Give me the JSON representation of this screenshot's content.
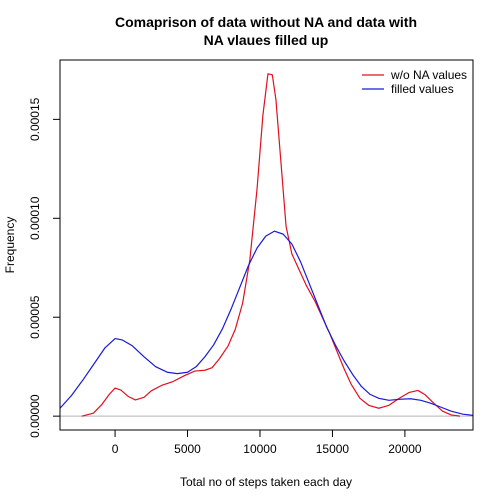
{
  "chart_data": {
    "type": "line",
    "title_lines": [
      "Comaprison of data without NA and data with",
      "NA vlaues filled up"
    ],
    "xlabel": "Total no of steps taken each day",
    "ylabel": "Frequency",
    "xlim": [
      -3800,
      24700
    ],
    "ylim": [
      -7e-06,
      0.00018
    ],
    "xticks": [
      0,
      5000,
      10000,
      15000,
      20000
    ],
    "xtick_labels": [
      "0",
      "5000",
      "10000",
      "15000",
      "20000"
    ],
    "yticks": [
      0,
      5e-05,
      0.0001,
      0.00015
    ],
    "ytick_labels": [
      "0.00000",
      "0.00005",
      "0.00010",
      "0.00015"
    ],
    "legend_position": "top-right",
    "baseline": 0,
    "series": [
      {
        "name": "w/o NA values",
        "color": "#e0101e",
        "points": [
          [
            -2300,
            0.0
          ],
          [
            -1500,
            1.5e-06
          ],
          [
            -900,
            6e-06
          ],
          [
            -400,
            1.1e-05
          ],
          [
            0,
            1.42e-05
          ],
          [
            400,
            1.32e-05
          ],
          [
            900,
            1e-05
          ],
          [
            1400,
            8.2e-06
          ],
          [
            2000,
            9.5e-06
          ],
          [
            2500,
            1.28e-05
          ],
          [
            3200,
            1.55e-05
          ],
          [
            4000,
            1.75e-05
          ],
          [
            4800,
            2.05e-05
          ],
          [
            5500,
            2.28e-05
          ],
          [
            6200,
            2.32e-05
          ],
          [
            6700,
            2.45e-05
          ],
          [
            7200,
            2.9e-05
          ],
          [
            7800,
            3.55e-05
          ],
          [
            8300,
            4.4e-05
          ],
          [
            8800,
            5.7e-05
          ],
          [
            9300,
            7.9e-05
          ],
          [
            9800,
            0.000115
          ],
          [
            10200,
            0.000152
          ],
          [
            10550,
            0.000173
          ],
          [
            10850,
            0.0001725
          ],
          [
            11100,
            0.00016
          ],
          [
            11450,
            0.000128
          ],
          [
            11800,
            9.6e-05
          ],
          [
            12200,
            8.2e-05
          ],
          [
            12700,
            7.4e-05
          ],
          [
            13200,
            6.6e-05
          ],
          [
            13800,
            5.8e-05
          ],
          [
            14300,
            5e-05
          ],
          [
            14800,
            4.2e-05
          ],
          [
            15300,
            3.3e-05
          ],
          [
            15800,
            2.4e-05
          ],
          [
            16300,
            1.6e-05
          ],
          [
            16900,
            9e-06
          ],
          [
            17500,
            5.5e-06
          ],
          [
            18200,
            4e-06
          ],
          [
            18900,
            5.5e-06
          ],
          [
            19600,
            9e-06
          ],
          [
            20300,
            1.2e-05
          ],
          [
            20900,
            1.3e-05
          ],
          [
            21400,
            1.08e-05
          ],
          [
            22000,
            6.5e-06
          ],
          [
            22600,
            2.5e-06
          ],
          [
            23200,
            6e-07
          ],
          [
            23800,
            0.0
          ]
        ]
      },
      {
        "name": "filled values",
        "color": "#1a1ad6",
        "points": [
          [
            -3800,
            4e-06
          ],
          [
            -3000,
            1.05e-05
          ],
          [
            -2200,
            1.85e-05
          ],
          [
            -1400,
            2.7e-05
          ],
          [
            -700,
            3.45e-05
          ],
          [
            0,
            3.92e-05
          ],
          [
            500,
            3.85e-05
          ],
          [
            1200,
            3.55e-05
          ],
          [
            2000,
            3e-05
          ],
          [
            2800,
            2.5e-05
          ],
          [
            3600,
            2.22e-05
          ],
          [
            4300,
            2.15e-05
          ],
          [
            5000,
            2.22e-05
          ],
          [
            5600,
            2.5e-05
          ],
          [
            6200,
            3e-05
          ],
          [
            6800,
            3.6e-05
          ],
          [
            7400,
            4.4e-05
          ],
          [
            8000,
            5.4e-05
          ],
          [
            8600,
            6.5e-05
          ],
          [
            9200,
            7.6e-05
          ],
          [
            9800,
            8.5e-05
          ],
          [
            10400,
            9.1e-05
          ],
          [
            11000,
            9.35e-05
          ],
          [
            11600,
            9.2e-05
          ],
          [
            12200,
            8.7e-05
          ],
          [
            12800,
            7.8e-05
          ],
          [
            13400,
            6.7e-05
          ],
          [
            14000,
            5.6e-05
          ],
          [
            14600,
            4.5e-05
          ],
          [
            15200,
            3.6e-05
          ],
          [
            15800,
            2.8e-05
          ],
          [
            16400,
            2.1e-05
          ],
          [
            17000,
            1.5e-05
          ],
          [
            17600,
            1.1e-05
          ],
          [
            18200,
            9e-06
          ],
          [
            18900,
            8e-06
          ],
          [
            19600,
            8.5e-06
          ],
          [
            20400,
            8.8e-06
          ],
          [
            21100,
            8e-06
          ],
          [
            21800,
            6.5e-06
          ],
          [
            22500,
            4.5e-06
          ],
          [
            23200,
            2.5e-06
          ],
          [
            24000,
            1e-06
          ],
          [
            24700,
            4e-07
          ]
        ]
      }
    ]
  }
}
